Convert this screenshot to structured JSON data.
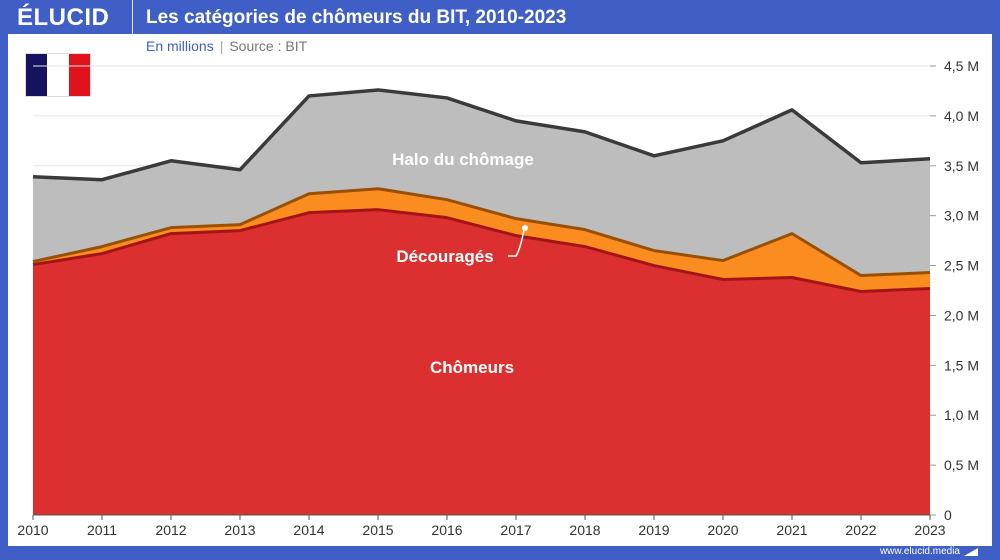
{
  "header": {
    "logo": "ÉLUCID",
    "title": "Les catégories de chômeurs du BIT, 2010-2023"
  },
  "subtitle": {
    "unit": "En millions",
    "separator": "|",
    "source": "Source : BIT"
  },
  "footer": {
    "url": "www.elucid.media"
  },
  "flag": {
    "colors": [
      "#14145e",
      "#ffffff",
      "#e0121b"
    ]
  },
  "colors": {
    "brand": "#3f5ec6",
    "chomeurs": "#dc2f2f",
    "chomeurs_line": "#a31515",
    "decourages": "#fb8c1f",
    "decourages_line": "#9a5004",
    "halo": "#bdbdbd",
    "halo_line": "#3a3a3a"
  },
  "chart_data": {
    "type": "area",
    "stacked": true,
    "title": "Les catégories de chômeurs du BIT, 2010-2023",
    "ylabel": "En millions",
    "ylim": [
      0,
      4.5
    ],
    "grid": true,
    "x": [
      2010,
      2011,
      2012,
      2013,
      2014,
      2015,
      2016,
      2017,
      2018,
      2019,
      2020,
      2021,
      2022,
      2023
    ],
    "yticks": [
      "0",
      "0,5 M",
      "1,0 M",
      "1,5 M",
      "2,0 M",
      "2,5 M",
      "3,0 M",
      "3,5 M",
      "4,0 M",
      "4,5 M"
    ],
    "series": [
      {
        "name": "Chômeurs",
        "values": [
          2.51,
          2.62,
          2.82,
          2.85,
          3.03,
          3.06,
          2.98,
          2.8,
          2.69,
          2.5,
          2.36,
          2.38,
          2.24,
          2.27
        ]
      },
      {
        "name": "Découragés",
        "values": [
          0.03,
          0.07,
          0.06,
          0.06,
          0.19,
          0.21,
          0.18,
          0.17,
          0.17,
          0.15,
          0.19,
          0.44,
          0.16,
          0.16
        ]
      },
      {
        "name": "Halo du chômage",
        "values": [
          0.85,
          0.67,
          0.67,
          0.55,
          0.98,
          0.99,
          1.02,
          0.98,
          0.98,
          0.95,
          1.2,
          1.24,
          1.13,
          1.14
        ]
      }
    ]
  }
}
